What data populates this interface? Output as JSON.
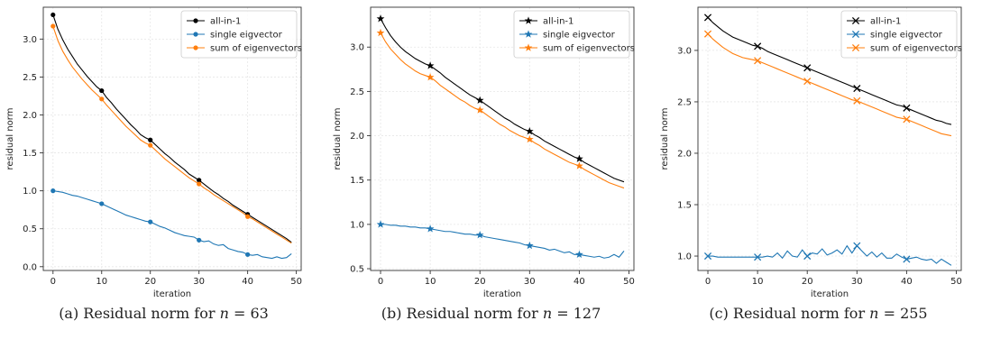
{
  "colors": {
    "all_in_1": "#000000",
    "single": "#1f77b4",
    "sum": "#ff7f0e",
    "grid": "#e6e6e6",
    "axis": "#333333"
  },
  "chart_data": [
    {
      "type": "line",
      "caption": {
        "prefix": "(a) Residual norm for ",
        "var": "n",
        "rest": " = 63"
      },
      "xlabel": "iteration",
      "ylabel": "residual norm",
      "xlim": [
        -2,
        51
      ],
      "ylim": [
        -0.05,
        3.42
      ],
      "xticks": [
        0,
        10,
        20,
        30,
        40,
        50
      ],
      "yticks": [
        0.0,
        0.5,
        1.0,
        1.5,
        2.0,
        2.5,
        3.0
      ],
      "ytick_labels": [
        "0.0",
        "0.5",
        "1.0",
        "1.5",
        "2.0",
        "2.5",
        "3.0"
      ],
      "marker": "dot",
      "grid": true,
      "legend_position": "top-right",
      "series": [
        {
          "name": "all-in-1",
          "color": "#000000",
          "x": [
            0,
            1,
            2,
            3,
            4,
            5,
            6,
            7,
            8,
            9,
            10,
            11,
            12,
            13,
            14,
            15,
            16,
            17,
            18,
            19,
            20,
            21,
            22,
            23,
            24,
            25,
            26,
            27,
            28,
            29,
            30,
            31,
            32,
            33,
            34,
            35,
            36,
            37,
            38,
            39,
            40,
            41,
            42,
            43,
            44,
            45,
            46,
            47,
            48,
            49
          ],
          "y": [
            3.32,
            3.13,
            2.99,
            2.87,
            2.77,
            2.67,
            2.59,
            2.51,
            2.44,
            2.37,
            2.32,
            2.23,
            2.16,
            2.08,
            2.01,
            1.94,
            1.87,
            1.81,
            1.74,
            1.7,
            1.67,
            1.61,
            1.55,
            1.49,
            1.44,
            1.38,
            1.33,
            1.28,
            1.22,
            1.18,
            1.14,
            1.09,
            1.04,
            0.99,
            0.95,
            0.9,
            0.86,
            0.81,
            0.77,
            0.73,
            0.69,
            0.65,
            0.61,
            0.57,
            0.53,
            0.49,
            0.45,
            0.41,
            0.37,
            0.32
          ]
        },
        {
          "name": "single eigvector",
          "color": "#1f77b4",
          "x": [
            0,
            1,
            2,
            3,
            4,
            5,
            6,
            7,
            8,
            9,
            10,
            11,
            12,
            13,
            14,
            15,
            16,
            17,
            18,
            19,
            20,
            21,
            22,
            23,
            24,
            25,
            26,
            27,
            28,
            29,
            30,
            31,
            32,
            33,
            34,
            35,
            36,
            37,
            38,
            39,
            40,
            41,
            42,
            43,
            44,
            45,
            46,
            47,
            48,
            49
          ],
          "y": [
            1.0,
            0.99,
            0.98,
            0.96,
            0.94,
            0.93,
            0.91,
            0.89,
            0.87,
            0.85,
            0.83,
            0.8,
            0.77,
            0.74,
            0.71,
            0.68,
            0.66,
            0.64,
            0.62,
            0.6,
            0.59,
            0.56,
            0.53,
            0.51,
            0.48,
            0.45,
            0.43,
            0.41,
            0.4,
            0.39,
            0.35,
            0.33,
            0.34,
            0.3,
            0.28,
            0.29,
            0.24,
            0.22,
            0.2,
            0.19,
            0.16,
            0.15,
            0.16,
            0.13,
            0.12,
            0.11,
            0.13,
            0.11,
            0.12,
            0.17
          ]
        },
        {
          "name": "sum of eigenvectors",
          "color": "#ff7f0e",
          "x": [
            0,
            1,
            2,
            3,
            4,
            5,
            6,
            7,
            8,
            9,
            10,
            11,
            12,
            13,
            14,
            15,
            16,
            17,
            18,
            19,
            20,
            21,
            22,
            23,
            24,
            25,
            26,
            27,
            28,
            29,
            30,
            31,
            32,
            33,
            34,
            35,
            36,
            37,
            38,
            39,
            40,
            41,
            42,
            43,
            44,
            45,
            46,
            47,
            48,
            49
          ],
          "y": [
            3.17,
            2.98,
            2.84,
            2.73,
            2.63,
            2.55,
            2.47,
            2.4,
            2.33,
            2.27,
            2.21,
            2.13,
            2.06,
            1.99,
            1.92,
            1.85,
            1.79,
            1.73,
            1.67,
            1.63,
            1.6,
            1.54,
            1.48,
            1.42,
            1.37,
            1.32,
            1.27,
            1.22,
            1.17,
            1.13,
            1.09,
            1.04,
            1.0,
            0.95,
            0.91,
            0.87,
            0.83,
            0.79,
            0.75,
            0.71,
            0.66,
            0.63,
            0.59,
            0.55,
            0.51,
            0.47,
            0.43,
            0.39,
            0.35,
            0.31
          ]
        }
      ]
    },
    {
      "type": "line",
      "caption": {
        "prefix": "(b) Residual norm for ",
        "var": "n",
        "rest": " = 127"
      },
      "xlabel": "iteration",
      "ylabel": "residual norm",
      "xlim": [
        -2,
        51
      ],
      "ylim": [
        0.48,
        3.45
      ],
      "xticks": [
        0,
        10,
        20,
        30,
        40,
        50
      ],
      "yticks": [
        0.5,
        1.0,
        1.5,
        2.0,
        2.5,
        3.0
      ],
      "ytick_labels": [
        "0.5",
        "1.0",
        "1.5",
        "2.0",
        "2.5",
        "3.0"
      ],
      "marker": "star",
      "grid": true,
      "legend_position": "top-right",
      "series": [
        {
          "name": "all-in-1",
          "color": "#000000",
          "x": [
            0,
            1,
            2,
            3,
            4,
            5,
            6,
            7,
            8,
            9,
            10,
            11,
            12,
            13,
            14,
            15,
            16,
            17,
            18,
            19,
            20,
            21,
            22,
            23,
            24,
            25,
            26,
            27,
            28,
            29,
            30,
            31,
            32,
            33,
            34,
            35,
            36,
            37,
            38,
            39,
            40,
            41,
            42,
            43,
            44,
            45,
            46,
            47,
            48,
            49
          ],
          "y": [
            3.32,
            3.22,
            3.13,
            3.06,
            3.0,
            2.95,
            2.91,
            2.87,
            2.84,
            2.81,
            2.79,
            2.75,
            2.71,
            2.66,
            2.62,
            2.58,
            2.54,
            2.5,
            2.46,
            2.43,
            2.4,
            2.36,
            2.32,
            2.28,
            2.24,
            2.2,
            2.17,
            2.13,
            2.1,
            2.07,
            2.05,
            2.01,
            1.98,
            1.94,
            1.91,
            1.88,
            1.85,
            1.82,
            1.79,
            1.76,
            1.74,
            1.7,
            1.67,
            1.64,
            1.61,
            1.58,
            1.55,
            1.52,
            1.5,
            1.48
          ]
        },
        {
          "name": "single eigvector",
          "color": "#1f77b4",
          "x": [
            0,
            1,
            2,
            3,
            4,
            5,
            6,
            7,
            8,
            9,
            10,
            11,
            12,
            13,
            14,
            15,
            16,
            17,
            18,
            19,
            20,
            21,
            22,
            23,
            24,
            25,
            26,
            27,
            28,
            29,
            30,
            31,
            32,
            33,
            34,
            35,
            36,
            37,
            38,
            39,
            40,
            41,
            42,
            43,
            44,
            45,
            46,
            47,
            48,
            49
          ],
          "y": [
            1.0,
            1.0,
            0.99,
            0.99,
            0.98,
            0.98,
            0.97,
            0.97,
            0.96,
            0.96,
            0.95,
            0.94,
            0.93,
            0.92,
            0.92,
            0.91,
            0.9,
            0.89,
            0.89,
            0.88,
            0.88,
            0.86,
            0.85,
            0.84,
            0.83,
            0.82,
            0.81,
            0.8,
            0.79,
            0.77,
            0.76,
            0.75,
            0.74,
            0.73,
            0.71,
            0.72,
            0.7,
            0.68,
            0.69,
            0.66,
            0.66,
            0.65,
            0.64,
            0.63,
            0.64,
            0.62,
            0.63,
            0.66,
            0.63,
            0.7
          ]
        },
        {
          "name": "sum of eigenvectors",
          "color": "#ff7f0e",
          "x": [
            0,
            1,
            2,
            3,
            4,
            5,
            6,
            7,
            8,
            9,
            10,
            11,
            12,
            13,
            14,
            15,
            16,
            17,
            18,
            19,
            20,
            21,
            22,
            23,
            24,
            25,
            26,
            27,
            28,
            29,
            30,
            31,
            32,
            33,
            34,
            35,
            36,
            37,
            38,
            39,
            40,
            41,
            42,
            43,
            44,
            45,
            46,
            47,
            48,
            49
          ],
          "y": [
            3.16,
            3.06,
            2.98,
            2.92,
            2.86,
            2.81,
            2.77,
            2.73,
            2.7,
            2.68,
            2.66,
            2.62,
            2.57,
            2.53,
            2.49,
            2.45,
            2.41,
            2.38,
            2.34,
            2.31,
            2.29,
            2.25,
            2.21,
            2.17,
            2.13,
            2.1,
            2.06,
            2.03,
            2.0,
            1.98,
            1.96,
            1.92,
            1.89,
            1.85,
            1.82,
            1.79,
            1.76,
            1.73,
            1.7,
            1.68,
            1.66,
            1.62,
            1.59,
            1.56,
            1.53,
            1.5,
            1.47,
            1.45,
            1.43,
            1.41
          ]
        }
      ]
    },
    {
      "type": "line",
      "caption": {
        "prefix": "(c) Residual norm for ",
        "var": "n",
        "rest": " = 255"
      },
      "xlabel": "iteration",
      "ylabel": "residual norm",
      "xlim": [
        -2,
        51
      ],
      "ylim": [
        0.86,
        3.42
      ],
      "xticks": [
        0,
        10,
        20,
        30,
        40,
        50
      ],
      "yticks": [
        1.0,
        1.5,
        2.0,
        2.5,
        3.0
      ],
      "ytick_labels": [
        "1.0",
        "1.5",
        "2.0",
        "2.5",
        "3.0"
      ],
      "marker": "x",
      "grid": true,
      "legend_position": "top-right",
      "series": [
        {
          "name": "all-in-1",
          "color": "#000000",
          "x": [
            0,
            1,
            2,
            3,
            4,
            5,
            6,
            7,
            8,
            9,
            10,
            11,
            12,
            13,
            14,
            15,
            16,
            17,
            18,
            19,
            20,
            21,
            22,
            23,
            24,
            25,
            26,
            27,
            28,
            29,
            30,
            31,
            32,
            33,
            34,
            35,
            36,
            37,
            38,
            39,
            40,
            41,
            42,
            43,
            44,
            45,
            46,
            47,
            48,
            49
          ],
          "y": [
            3.32,
            3.27,
            3.23,
            3.19,
            3.16,
            3.13,
            3.11,
            3.09,
            3.07,
            3.05,
            3.04,
            3.02,
            2.99,
            2.97,
            2.95,
            2.93,
            2.91,
            2.89,
            2.87,
            2.85,
            2.83,
            2.81,
            2.79,
            2.77,
            2.75,
            2.73,
            2.71,
            2.69,
            2.67,
            2.65,
            2.63,
            2.61,
            2.59,
            2.57,
            2.55,
            2.53,
            2.51,
            2.49,
            2.47,
            2.46,
            2.44,
            2.42,
            2.4,
            2.38,
            2.36,
            2.34,
            2.32,
            2.31,
            2.29,
            2.28
          ]
        },
        {
          "name": "single eigvector",
          "color": "#1f77b4",
          "x": [
            0,
            1,
            2,
            3,
            4,
            5,
            6,
            7,
            8,
            9,
            10,
            11,
            12,
            13,
            14,
            15,
            16,
            17,
            18,
            19,
            20,
            21,
            22,
            23,
            24,
            25,
            26,
            27,
            28,
            29,
            30,
            31,
            32,
            33,
            34,
            35,
            36,
            37,
            38,
            39,
            40,
            41,
            42,
            43,
            44,
            45,
            46,
            47,
            48,
            49
          ],
          "y": [
            1.0,
            1.0,
            0.99,
            0.99,
            0.99,
            0.99,
            0.99,
            0.99,
            0.99,
            0.99,
            0.99,
            0.99,
            1.0,
            0.99,
            1.03,
            0.98,
            1.05,
            1.0,
            0.99,
            1.06,
            1.0,
            1.03,
            1.02,
            1.07,
            1.01,
            1.03,
            1.06,
            1.02,
            1.1,
            1.03,
            1.1,
            1.05,
            1.0,
            1.04,
            0.99,
            1.03,
            0.98,
            0.98,
            1.02,
            0.99,
            0.97,
            0.98,
            0.99,
            0.97,
            0.96,
            0.97,
            0.93,
            0.97,
            0.94,
            0.91
          ]
        },
        {
          "name": "sum of eigenvectors",
          "color": "#ff7f0e",
          "x": [
            0,
            1,
            2,
            3,
            4,
            5,
            6,
            7,
            8,
            9,
            10,
            11,
            12,
            13,
            14,
            15,
            16,
            17,
            18,
            19,
            20,
            21,
            22,
            23,
            24,
            25,
            26,
            27,
            28,
            29,
            30,
            31,
            32,
            33,
            34,
            35,
            36,
            37,
            38,
            39,
            40,
            41,
            42,
            43,
            44,
            45,
            46,
            47,
            48,
            49
          ],
          "y": [
            3.16,
            3.11,
            3.07,
            3.03,
            3.0,
            2.97,
            2.95,
            2.93,
            2.92,
            2.91,
            2.9,
            2.88,
            2.86,
            2.84,
            2.82,
            2.8,
            2.78,
            2.76,
            2.74,
            2.72,
            2.7,
            2.68,
            2.66,
            2.64,
            2.62,
            2.6,
            2.58,
            2.56,
            2.54,
            2.52,
            2.51,
            2.49,
            2.47,
            2.45,
            2.43,
            2.41,
            2.39,
            2.37,
            2.35,
            2.34,
            2.33,
            2.31,
            2.29,
            2.27,
            2.25,
            2.23,
            2.21,
            2.19,
            2.18,
            2.17
          ]
        }
      ]
    }
  ]
}
